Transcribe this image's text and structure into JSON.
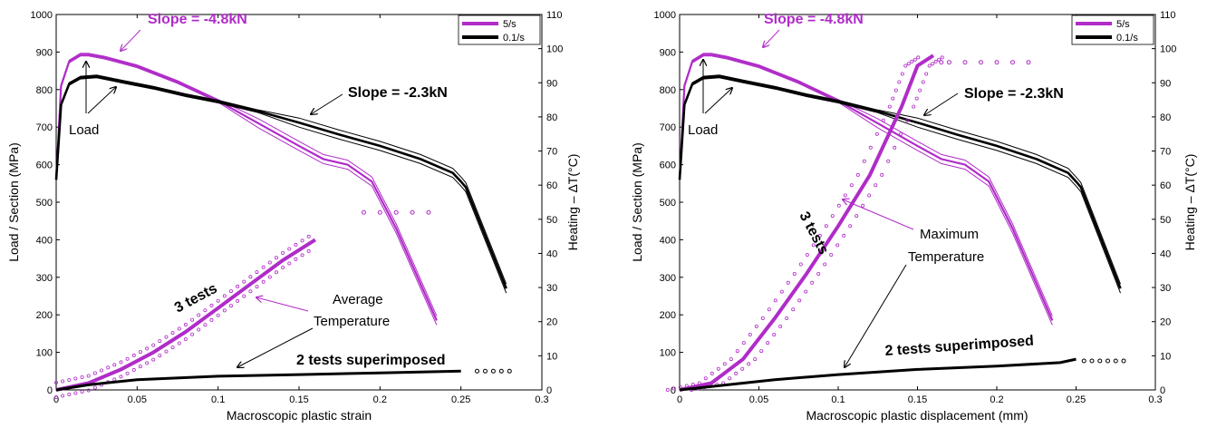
{
  "colors": {
    "fast": "#b02cc8",
    "slow": "#000000",
    "arrow_magenta": "#b02cc8"
  },
  "chart_data": [
    {
      "type": "line",
      "xlabel": "Macroscopic plastic strain",
      "ylabel": "Load / Section (MPa)",
      "y2label": "Heating – ΔT(°C)",
      "xlim": [
        0,
        0.3
      ],
      "ylim": [
        0,
        1000
      ],
      "y2lim": [
        0,
        110
      ],
      "xticks": [
        "0",
        "0.05",
        "0.1",
        "0.15",
        "0.2",
        "0.25",
        "0.3"
      ],
      "yticks": [
        "0",
        "100",
        "200",
        "300",
        "400",
        "500",
        "600",
        "700",
        "800",
        "900",
        "1000"
      ],
      "y2ticks": [
        "0",
        "10",
        "20",
        "30",
        "40",
        "50",
        "60",
        "70",
        "80",
        "90",
        "100",
        "110"
      ],
      "legend": {
        "position": "top-right",
        "entries": [
          "5/s",
          "0.1/s"
        ]
      },
      "annotations": {
        "slope_fast": "Slope = -4.8kN",
        "slope_slow": "Slope = -2.3kN",
        "load": "Load",
        "tests3": "3 tests",
        "temp_line1": "Average",
        "temp_line2": "Temperature",
        "tests2": "2 tests superimposed"
      },
      "series": [
        {
          "name": "5/s",
          "kind": "load",
          "axis": "left",
          "x": [
            0,
            0.003,
            0.008,
            0.015,
            0.02,
            0.03,
            0.05,
            0.075,
            0.1,
            0.125,
            0.15,
            0.165,
            0.18,
            0.195,
            0.21,
            0.235
          ],
          "y": [
            560,
            810,
            875,
            893,
            893,
            885,
            862,
            820,
            770,
            710,
            650,
            615,
            600,
            555,
            430,
            185
          ]
        },
        {
          "name": "0.1/s",
          "kind": "load",
          "axis": "left",
          "x": [
            0,
            0.003,
            0.008,
            0.015,
            0.025,
            0.04,
            0.06,
            0.08,
            0.1,
            0.125,
            0.15,
            0.175,
            0.2,
            0.225,
            0.245,
            0.25,
            0.253,
            0.278
          ],
          "y": [
            560,
            760,
            815,
            832,
            835,
            822,
            805,
            785,
            768,
            742,
            712,
            680,
            650,
            615,
            578,
            555,
            540,
            270
          ]
        },
        {
          "name": "5/s",
          "kind": "temperature",
          "axis": "right",
          "x": [
            0,
            0.02,
            0.04,
            0.06,
            0.08,
            0.1,
            0.12,
            0.14,
            0.16
          ],
          "y": [
            0,
            2,
            6,
            11,
            17,
            24,
            31,
            38,
            44
          ]
        },
        {
          "name": "5/s",
          "kind": "temperature_points",
          "axis": "right",
          "x": [
            0.19,
            0.2,
            0.21,
            0.22,
            0.23
          ],
          "y": [
            52,
            52,
            52,
            52,
            52
          ]
        },
        {
          "name": "0.1/s",
          "kind": "temperature",
          "axis": "right",
          "x": [
            0,
            0.02,
            0.05,
            0.1,
            0.15,
            0.2,
            0.25
          ],
          "y": [
            0,
            1.5,
            3,
            4,
            4.5,
            5,
            5.5
          ]
        },
        {
          "name": "0.1/s",
          "kind": "temperature_points",
          "axis": "right",
          "x": [
            0.26,
            0.265,
            0.27,
            0.275,
            0.28
          ],
          "y": [
            5.5,
            5.5,
            5.5,
            5.5,
            5.5
          ]
        }
      ]
    },
    {
      "type": "line",
      "xlabel": "Macroscopic plastic displacement (mm)",
      "ylabel": "Load / Section (MPa)",
      "y2label": "Heating – ΔT(°C)",
      "xlim": [
        0,
        0.3
      ],
      "ylim": [
        0,
        1000
      ],
      "y2lim": [
        0,
        110
      ],
      "xticks": [
        "0",
        "0.05",
        "0.1",
        "0.15",
        "0.2",
        "0.25",
        "0.3"
      ],
      "yticks": [
        "0",
        "100",
        "200",
        "300",
        "400",
        "500",
        "600",
        "700",
        "800",
        "900",
        "1000"
      ],
      "y2ticks": [
        "0",
        "10",
        "20",
        "30",
        "40",
        "50",
        "60",
        "70",
        "80",
        "90",
        "100",
        "110"
      ],
      "legend": {
        "position": "top-right",
        "entries": [
          "5/s",
          "0.1/s"
        ]
      },
      "annotations": {
        "slope_fast": "Slope = -4.8kN",
        "slope_slow": "Slope = -2.3kN",
        "load": "Load",
        "tests3": "3 tests",
        "temp_line1": "Maximum",
        "temp_line2": "Temperature",
        "tests2": "2 tests superimposed"
      },
      "series": [
        {
          "name": "5/s",
          "kind": "load",
          "axis": "left",
          "x": [
            0,
            0.003,
            0.008,
            0.015,
            0.02,
            0.03,
            0.05,
            0.075,
            0.1,
            0.125,
            0.15,
            0.165,
            0.18,
            0.195,
            0.21,
            0.235
          ],
          "y": [
            560,
            810,
            875,
            893,
            893,
            885,
            862,
            820,
            770,
            710,
            650,
            615,
            600,
            555,
            430,
            185
          ]
        },
        {
          "name": "0.1/s",
          "kind": "load",
          "axis": "left",
          "x": [
            0,
            0.003,
            0.008,
            0.015,
            0.025,
            0.04,
            0.06,
            0.08,
            0.1,
            0.125,
            0.15,
            0.175,
            0.2,
            0.225,
            0.245,
            0.25,
            0.253,
            0.278
          ],
          "y": [
            560,
            760,
            815,
            832,
            835,
            822,
            805,
            785,
            768,
            742,
            712,
            680,
            650,
            615,
            578,
            555,
            540,
            270
          ]
        },
        {
          "name": "5/s",
          "kind": "temperature",
          "axis": "right",
          "x": [
            0,
            0.02,
            0.04,
            0.06,
            0.08,
            0.1,
            0.12,
            0.14,
            0.15,
            0.16
          ],
          "y": [
            0,
            2,
            9,
            21,
            34,
            48,
            63,
            83,
            95,
            98
          ]
        },
        {
          "name": "5/s",
          "kind": "temperature_points",
          "axis": "right",
          "x": [
            0.165,
            0.17,
            0.18,
            0.19,
            0.2,
            0.21,
            0.22
          ],
          "y": [
            96,
            96,
            96,
            96,
            96,
            96,
            96
          ]
        },
        {
          "name": "0.1/s",
          "kind": "temperature",
          "axis": "right",
          "x": [
            0,
            0.03,
            0.06,
            0.1,
            0.15,
            0.2,
            0.24,
            0.25
          ],
          "y": [
            0,
            1.5,
            3,
            4.5,
            6,
            7,
            8,
            9
          ]
        },
        {
          "name": "0.1/s",
          "kind": "temperature_points",
          "axis": "right",
          "x": [
            0.255,
            0.26,
            0.265,
            0.27,
            0.275,
            0.28
          ],
          "y": [
            8.5,
            8.5,
            8.5,
            8.5,
            8.5,
            8.5
          ]
        }
      ]
    }
  ]
}
